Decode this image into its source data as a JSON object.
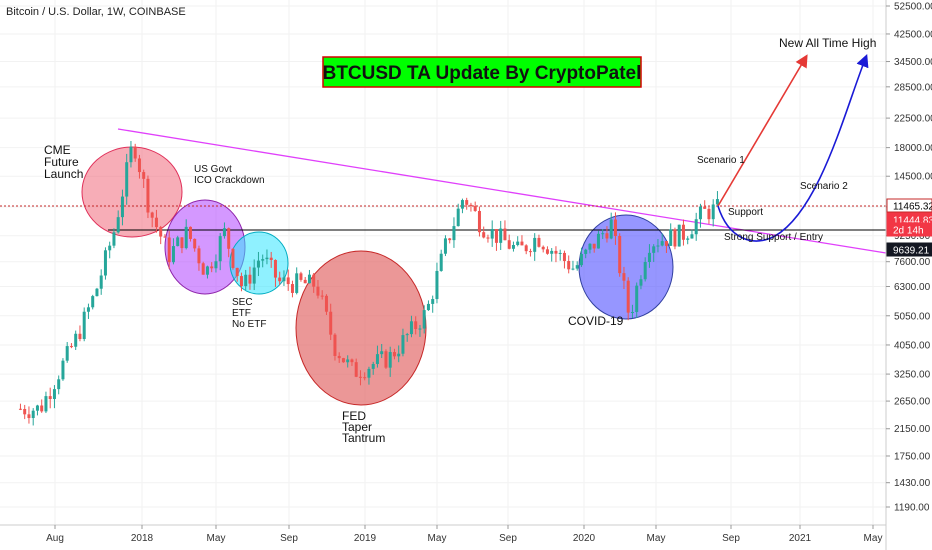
{
  "chart_data": {
    "type": "candlestick",
    "title": "Bitcoin / U.S. Dollar, 1W, COINBASE",
    "banner": "BTCUSD TA Update By CryptoPatel",
    "y_axis": {
      "scale": "log",
      "range": [
        1000,
        55000
      ],
      "ticks": [
        "52500.00",
        "42500.00",
        "34500.00",
        "28500.00",
        "22500.00",
        "18000.00",
        "14500.00",
        "11500.00",
        "9250.00",
        "7600.00",
        "6300.00",
        "5050.00",
        "4050.00",
        "3250.00",
        "2650.00",
        "2150.00",
        "1750.00",
        "1430.00",
        "1190.00"
      ]
    },
    "x_axis": {
      "ticks": [
        "Aug",
        "2018",
        "May",
        "Sep",
        "2019",
        "May",
        "Sep",
        "2020",
        "May",
        "Sep",
        "2021",
        "May"
      ]
    },
    "price_tags": [
      {
        "label": "11465.32",
        "style": "outline"
      },
      {
        "label": "11444.83",
        "style": "red"
      },
      {
        "label": "2d 14h",
        "style": "red"
      },
      {
        "label": "9639.21",
        "style": "dark"
      }
    ],
    "annotations": {
      "cme": [
        "CME",
        "Future",
        "Launch"
      ],
      "usgovt": [
        "US Govt",
        "ICO Crackdown"
      ],
      "sec": [
        "SEC",
        "ETF",
        "No ETF"
      ],
      "fed": [
        "FED",
        "Taper",
        "Tantrum"
      ],
      "covid": "COVID-19",
      "support": "Support",
      "strong_support": "Strong Support / Entry",
      "scenario1": "Scenario 1",
      "scenario2": "Scenario 2",
      "ath": "New All Time High"
    },
    "colors": {
      "up": "#26a69a",
      "down": "#ef5350",
      "trendline": "#e040fb",
      "support_line": "#000000",
      "resistance_dotted": "#c62828",
      "banner_bg": "#00ff00",
      "banner_border": "#d50000",
      "scenario1_arrow": "#e53935",
      "scenario2_arrow": "#1a1ad6"
    },
    "series": [
      {
        "date": "2017-07",
        "close": 2500
      },
      {
        "date": "2017-09",
        "close": 4300
      },
      {
        "date": "2017-10",
        "close": 6000
      },
      {
        "date": "2017-11",
        "close": 9500
      },
      {
        "date": "2017-12-17",
        "close": 19000
      },
      {
        "date": "2018-01",
        "close": 11000
      },
      {
        "date": "2018-02",
        "close": 8000
      },
      {
        "date": "2018-03",
        "close": 9500
      },
      {
        "date": "2018-04",
        "close": 7000
      },
      {
        "date": "2018-05",
        "close": 9500
      },
      {
        "date": "2018-06",
        "close": 6200
      },
      {
        "date": "2018-07",
        "close": 8000
      },
      {
        "date": "2018-08",
        "close": 6500
      },
      {
        "date": "2018-10",
        "close": 6400
      },
      {
        "date": "2018-11",
        "close": 4000
      },
      {
        "date": "2018-12",
        "close": 3300
      },
      {
        "date": "2019-02",
        "close": 3700
      },
      {
        "date": "2019-04",
        "close": 5200
      },
      {
        "date": "2019-05",
        "close": 8500
      },
      {
        "date": "2019-06",
        "close": 12500
      },
      {
        "date": "2019-07",
        "close": 10000
      },
      {
        "date": "2019-09",
        "close": 8200
      },
      {
        "date": "2019-10",
        "close": 9200
      },
      {
        "date": "2019-12",
        "close": 7200
      },
      {
        "date": "2020-02",
        "close": 10200
      },
      {
        "date": "2020-03",
        "close": 5000
      },
      {
        "date": "2020-04",
        "close": 8800
      },
      {
        "date": "2020-06",
        "close": 9400
      },
      {
        "date": "2020-07",
        "close": 11000
      },
      {
        "date": "2020-08",
        "close": 11450
      }
    ]
  }
}
